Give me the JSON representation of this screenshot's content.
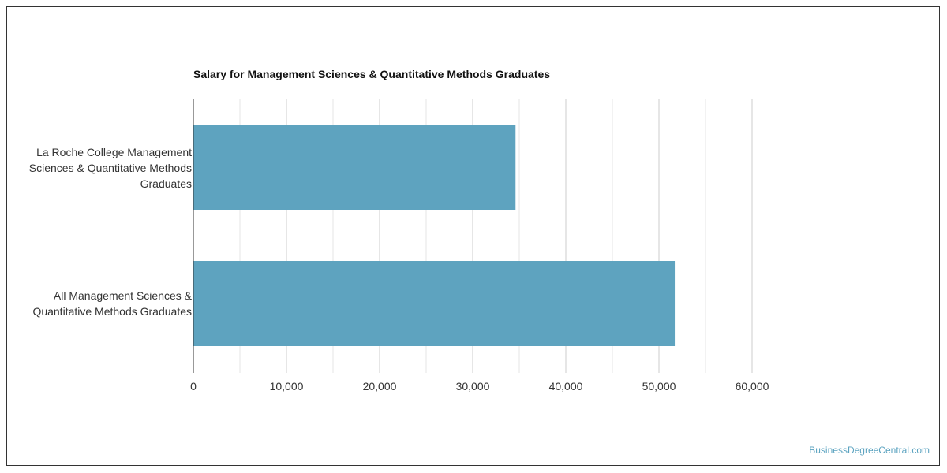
{
  "watermark": "BusinessDegreeCentral.com",
  "chart_data": {
    "type": "bar",
    "orientation": "horizontal",
    "title": "Salary for Management Sciences & Quantitative Methods Graduates",
    "categories": [
      [
        "La Roche College Management",
        "Sciences & Quantitative Methods",
        "Graduates"
      ],
      [
        "All Management Sciences &",
        "Quantitative Methods Graduates"
      ]
    ],
    "values": [
      34600,
      51700
    ],
    "xlim": [
      0,
      60000
    ],
    "ticks": [
      0,
      10000,
      20000,
      30000,
      40000,
      50000,
      60000
    ],
    "tick_labels": [
      "0",
      "10,000",
      "20,000",
      "30,000",
      "40,000",
      "50,000",
      "60,000"
    ],
    "grid": true,
    "bar_color": "#5ea3bf"
  }
}
